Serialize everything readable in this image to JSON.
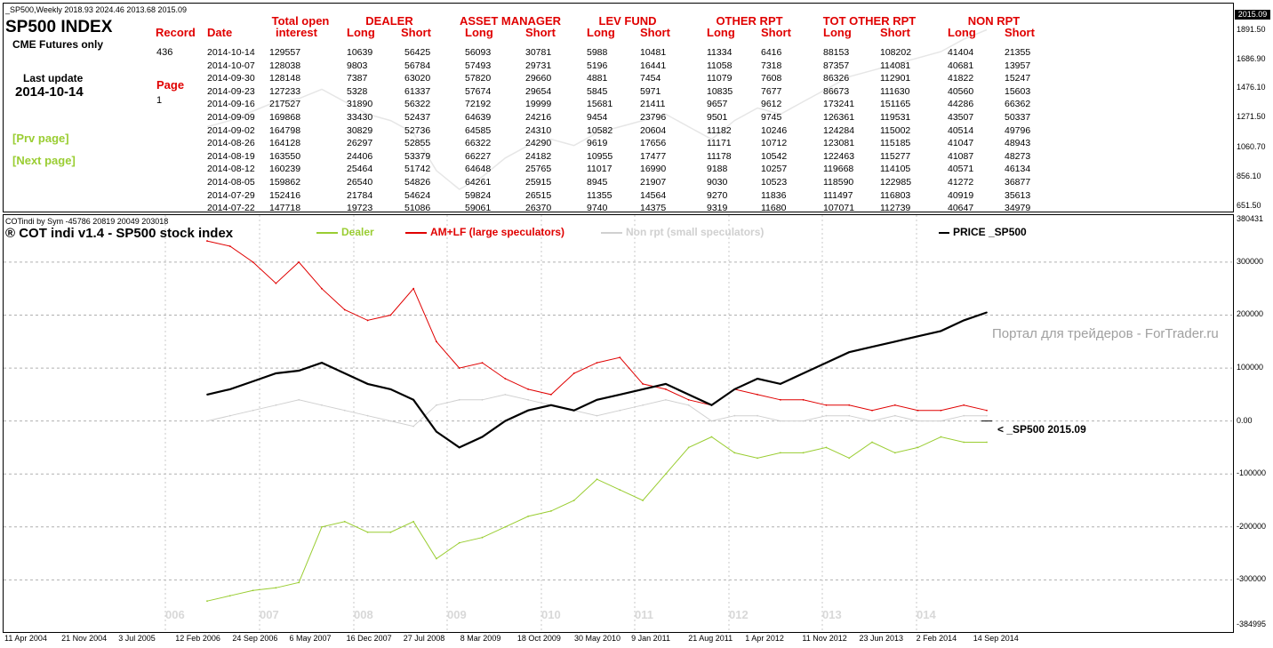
{
  "top_panel": {
    "caption": "_SP500,Weekly  2018.93 2024.46 2013.68 2015.09",
    "title": "SP500 INDEX",
    "subtitle": "CME Futures only",
    "last_update_label": "Last update",
    "last_update_value": "2014-10-14",
    "record_label": "Record",
    "record_value": "436",
    "page_label": "Page",
    "page_value": "1",
    "prev_link": "[Prv page]",
    "next_link": "[Next page]",
    "date_header": "Date",
    "group_headers": [
      "Total open",
      "DEALER",
      "ASSET MANAGER",
      "LEV FUND",
      "OTHER RPT",
      "TOT OTHER RPT",
      "NON RPT"
    ],
    "interest_header": "interest",
    "sub_headers": [
      "Long",
      "Short",
      "Long",
      "Short",
      "Long",
      "Short",
      "Long",
      "Short",
      "Long",
      "Short",
      "Long",
      "Short"
    ],
    "rows": [
      [
        "2014-10-14",
        "129557",
        "10639",
        "56425",
        "56093",
        "30781",
        "5988",
        "10481",
        "11334",
        "6416",
        "88153",
        "108202",
        "41404",
        "21355"
      ],
      [
        "2014-10-07",
        "128038",
        "9803",
        "56784",
        "57493",
        "29731",
        "5196",
        "16441",
        "11058",
        "7318",
        "87357",
        "114081",
        "40681",
        "13957"
      ],
      [
        "2014-09-30",
        "128148",
        "7387",
        "63020",
        "57820",
        "29660",
        "4881",
        "7454",
        "11079",
        "7608",
        "86326",
        "112901",
        "41822",
        "15247"
      ],
      [
        "2014-09-23",
        "127233",
        "5328",
        "61337",
        "57674",
        "29654",
        "5845",
        "5971",
        "10835",
        "7677",
        "86673",
        "111630",
        "40560",
        "15603"
      ],
      [
        "2014-09-16",
        "217527",
        "31890",
        "56322",
        "72192",
        "19999",
        "15681",
        "21411",
        "9657",
        "9612",
        "173241",
        "151165",
        "44286",
        "66362"
      ],
      [
        "2014-09-09",
        "169868",
        "33430",
        "52437",
        "64639",
        "24216",
        "9454",
        "23796",
        "9501",
        "9745",
        "126361",
        "119531",
        "43507",
        "50337"
      ],
      [
        "2014-09-02",
        "164798",
        "30829",
        "52736",
        "64585",
        "24310",
        "10582",
        "20604",
        "11182",
        "10246",
        "124284",
        "115002",
        "40514",
        "49796"
      ],
      [
        "2014-08-26",
        "164128",
        "26297",
        "52855",
        "66322",
        "24290",
        "9619",
        "17656",
        "11171",
        "10712",
        "123081",
        "115185",
        "41047",
        "48943"
      ],
      [
        "2014-08-19",
        "163550",
        "24406",
        "53379",
        "66227",
        "24182",
        "10955",
        "17477",
        "11178",
        "10542",
        "122463",
        "115277",
        "41087",
        "48273"
      ],
      [
        "2014-08-12",
        "160239",
        "25464",
        "51742",
        "64648",
        "25765",
        "11017",
        "16990",
        "9188",
        "10257",
        "119668",
        "114105",
        "40571",
        "46134"
      ],
      [
        "2014-08-05",
        "159862",
        "26540",
        "54826",
        "64261",
        "25915",
        "8945",
        "21907",
        "9030",
        "10523",
        "118590",
        "122985",
        "41272",
        "36877"
      ],
      [
        "2014-07-29",
        "152416",
        "21784",
        "54624",
        "59824",
        "26515",
        "11355",
        "14564",
        "9270",
        "11836",
        "111497",
        "116803",
        "40919",
        "35613"
      ],
      [
        "2014-07-22",
        "147718",
        "19723",
        "51086",
        "59061",
        "26370",
        "9740",
        "14375",
        "9319",
        "11680",
        "107071",
        "112739",
        "40647",
        "34979"
      ]
    ],
    "y_ticks": [
      "1891.50",
      "1686.90",
      "1476.10",
      "1271.50",
      "1060.70",
      "856.10",
      "651.50"
    ],
    "price_badge": "2015.09"
  },
  "bottom_panel": {
    "caption": "COTindi by Sym -45786 20819 20049 203018",
    "title": "® COT indi v1.4 - SP500 stock index",
    "legend": [
      {
        "name": "Dealer",
        "color": "#9acd32"
      },
      {
        "name": "AM+LF (large speculators)",
        "color": "#e00000"
      },
      {
        "name": "Non rpt (small speculators)",
        "color": "#d0d0d0"
      },
      {
        "name": "PRICE _SP500",
        "color": "#000000"
      }
    ],
    "price_marker": "< _SP500  2015.09",
    "watermark": "Портал для трейдеров - ForTrader.ru",
    "y_ticks": [
      "380431",
      "300000",
      "200000",
      "100000",
      "0.00",
      "-100000",
      "-200000",
      "-300000",
      "-384995"
    ],
    "year_labels": [
      "006",
      "007",
      "008",
      "009",
      "010",
      "011",
      "012",
      "013",
      "014"
    ]
  },
  "x_ticks": [
    "11 Apr 2004",
    "21 Nov 2004",
    "3 Jul 2005",
    "12 Feb 2006",
    "24 Sep 2006",
    "6 May 2007",
    "16 Dec 2007",
    "27 Jul 2008",
    "8 Mar 2009",
    "18 Oct 2009",
    "30 May 2010",
    "9 Jan 2011",
    "21 Aug 2011",
    "1 Apr 2012",
    "11 Nov 2012",
    "23 Jun 2013",
    "2 Feb 2014",
    "14 Sep 2014"
  ],
  "chart_data": {
    "type": "line",
    "title": "® COT indi v1.4 - SP500 stock index",
    "x": [
      "2006-04",
      "2006-07",
      "2006-10",
      "2007-01",
      "2007-04",
      "2007-07",
      "2007-10",
      "2008-01",
      "2008-04",
      "2008-07",
      "2008-10",
      "2009-01",
      "2009-04",
      "2009-07",
      "2009-10",
      "2010-01",
      "2010-04",
      "2010-07",
      "2010-10",
      "2011-01",
      "2011-04",
      "2011-07",
      "2011-10",
      "2012-01",
      "2012-04",
      "2012-07",
      "2012-10",
      "2013-01",
      "2013-04",
      "2013-07",
      "2013-10",
      "2014-01",
      "2014-04",
      "2014-07",
      "2014-10"
    ],
    "ylim": [
      -384995,
      380431
    ],
    "series": [
      {
        "name": "Dealer",
        "color": "#9acd32",
        "values": [
          -340000,
          -330000,
          -320000,
          -315000,
          -305000,
          -200000,
          -190000,
          -210000,
          -210000,
          -190000,
          -260000,
          -230000,
          -220000,
          -200000,
          -180000,
          -170000,
          -150000,
          -110000,
          -130000,
          -150000,
          -100000,
          -50000,
          -30000,
          -60000,
          -70000,
          -60000,
          -60000,
          -50000,
          -70000,
          -40000,
          -60000,
          -50000,
          -30000,
          -40000,
          -40000
        ]
      },
      {
        "name": "AM+LF (large speculators)",
        "color": "#e00000",
        "values": [
          340000,
          330000,
          300000,
          260000,
          300000,
          250000,
          210000,
          190000,
          200000,
          250000,
          150000,
          100000,
          110000,
          80000,
          60000,
          50000,
          90000,
          110000,
          120000,
          70000,
          60000,
          40000,
          30000,
          60000,
          50000,
          40000,
          40000,
          30000,
          30000,
          20000,
          30000,
          20000,
          20000,
          30000,
          20000
        ]
      },
      {
        "name": "Non rpt (small speculators)",
        "color": "#d0d0d0",
        "values": [
          0,
          10000,
          20000,
          30000,
          40000,
          30000,
          20000,
          10000,
          0,
          -10000,
          30000,
          40000,
          40000,
          50000,
          40000,
          30000,
          20000,
          10000,
          20000,
          30000,
          40000,
          30000,
          0,
          10000,
          10000,
          0,
          0,
          10000,
          10000,
          0,
          10000,
          0,
          0,
          10000,
          10000
        ]
      },
      {
        "name": "PRICE _SP500",
        "color": "#000000",
        "values": [
          50000,
          60000,
          75000,
          90000,
          95000,
          110000,
          90000,
          70000,
          60000,
          40000,
          -20000,
          -50000,
          -30000,
          0,
          20000,
          30000,
          20000,
          40000,
          50000,
          60000,
          70000,
          50000,
          30000,
          60000,
          80000,
          70000,
          90000,
          110000,
          130000,
          140000,
          150000,
          160000,
          170000,
          190000,
          205000
        ]
      }
    ]
  }
}
